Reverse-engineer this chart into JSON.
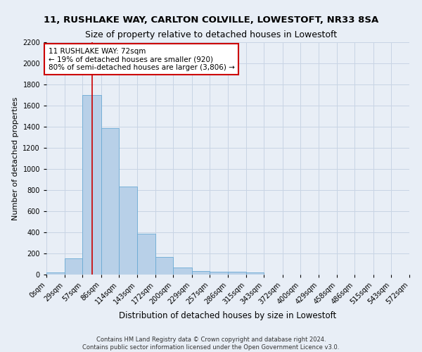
{
  "title": "11, RUSHLAKE WAY, CARLTON COLVILLE, LOWESTOFT, NR33 8SA",
  "subtitle": "Size of property relative to detached houses in Lowestoft",
  "xlabel": "Distribution of detached houses by size in Lowestoft",
  "ylabel": "Number of detached properties",
  "footer_line1": "Contains HM Land Registry data © Crown copyright and database right 2024.",
  "footer_line2": "Contains public sector information licensed under the Open Government Licence v3.0.",
  "bin_edges": [
    0,
    29,
    57,
    86,
    114,
    143,
    172,
    200,
    229,
    257,
    286,
    315,
    343,
    372,
    400,
    429,
    458,
    486,
    515,
    543,
    572
  ],
  "bar_heights": [
    20,
    155,
    1700,
    1390,
    835,
    385,
    165,
    65,
    35,
    30,
    30,
    20,
    0,
    0,
    0,
    0,
    0,
    0,
    0,
    0
  ],
  "bar_color": "#b8d0e8",
  "bar_edgecolor": "#6aaad4",
  "grid_color": "#c8d4e4",
  "background_color": "#e8eef6",
  "property_size": 72,
  "vline_color": "#cc0000",
  "annotation_text": "11 RUSHLAKE WAY: 72sqm\n← 19% of detached houses are smaller (920)\n80% of semi-detached houses are larger (3,806) →",
  "annotation_box_color": "#ffffff",
  "annotation_box_edgecolor": "#cc0000",
  "ylim": [
    0,
    2200
  ],
  "yticks": [
    0,
    200,
    400,
    600,
    800,
    1000,
    1200,
    1400,
    1600,
    1800,
    2000,
    2200
  ],
  "title_fontsize": 9.5,
  "subtitle_fontsize": 9,
  "xlabel_fontsize": 8.5,
  "ylabel_fontsize": 8,
  "tick_fontsize": 7,
  "annotation_fontsize": 7.5,
  "footer_fontsize": 6
}
